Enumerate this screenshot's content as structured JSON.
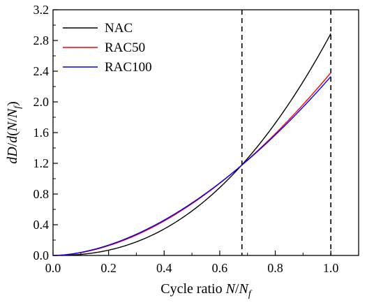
{
  "chart_data": {
    "type": "line",
    "title": "",
    "xlabel": {
      "prefix": "Cycle ratio ",
      "var": "N",
      "slash": "/",
      "var2": "N",
      "sub": "f"
    },
    "ylabel": {
      "d1": "d",
      "D": "D",
      "slash1": "/",
      "d2": "d",
      "paren_open": "(",
      "N": "N",
      "slash2": "/",
      "N2": "N",
      "sub": "f",
      "paren_close": ")"
    },
    "xlim": [
      0.0,
      1.1
    ],
    "ylim": [
      0.0,
      3.2
    ],
    "xticks": [
      0.0,
      0.2,
      0.4,
      0.6,
      0.8,
      1.0
    ],
    "xtick_labels": [
      "0.0",
      "0.2",
      "0.4",
      "0.6",
      "0.8",
      "1.0"
    ],
    "yticks": [
      0.0,
      0.4,
      0.8,
      1.2,
      1.6,
      2.0,
      2.4,
      2.8,
      3.2
    ],
    "ytick_labels": [
      "0.0",
      "0.4",
      "0.8",
      "1.2",
      "1.6",
      "2.0",
      "2.4",
      "2.8",
      "3.2"
    ],
    "grid": false,
    "legend_position": "top-left",
    "vlines": [
      {
        "x": 0.68,
        "style": "dashed",
        "color": "#000000"
      },
      {
        "x": 1.0,
        "style": "dashed",
        "color": "#000000"
      }
    ],
    "series": [
      {
        "name": "NAC",
        "color": "#000000",
        "a": 2.89,
        "b": 2.32
      },
      {
        "name": "RAC50",
        "color": "#ff0000",
        "a": 2.38,
        "b": 1.82
      },
      {
        "name": "RAC100",
        "color": "#0000ff",
        "a": 2.33,
        "b": 1.77
      }
    ]
  }
}
